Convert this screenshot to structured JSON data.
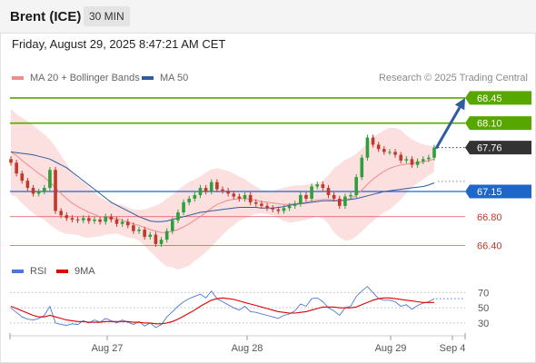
{
  "header": {
    "symbol": "Brent (ICE)",
    "timeframe": "30 MIN"
  },
  "datetime": "Friday, August 29, 2025 8:47:21 AM CET",
  "legend": [
    {
      "label": "MA 20 + Bollinger Bands",
      "color": "#f28b8b"
    },
    {
      "label": "MA 50",
      "color": "#2e5c9e"
    }
  ],
  "credit": "Research © 2025 Trading Central",
  "colors": {
    "up": "#2e9e3e",
    "down": "#c0392b",
    "green_level": "#58a700",
    "blue_level": "#1f66c9",
    "red_level": "#d9534f",
    "band_fill": "#fbd9d9",
    "current": "#333333",
    "arrow": "#2e5c9e"
  },
  "chart_data": [
    {
      "type": "candlestick",
      "title": "",
      "x_ticks": [
        "Aug 27",
        "Aug 28",
        "Aug 29",
        "Sep 4"
      ],
      "ylim": [
        66.28,
        68.55
      ],
      "current_price": 67.76,
      "resistance_levels": [
        "68.45",
        "68.10"
      ],
      "pivot": "67.15",
      "support_levels": [
        "66.80",
        "66.40"
      ],
      "projection": {
        "from": 67.76,
        "to": 68.45
      },
      "closes": [
        67.55,
        67.4,
        67.3,
        67.2,
        67.12,
        67.15,
        67.2,
        67.45,
        66.88,
        66.82,
        66.78,
        66.76,
        66.75,
        66.78,
        66.74,
        66.76,
        66.73,
        66.8,
        66.76,
        66.7,
        66.73,
        66.68,
        66.6,
        66.62,
        66.52,
        66.55,
        66.42,
        66.48,
        66.6,
        66.75,
        66.86,
        67.0,
        67.05,
        67.1,
        67.2,
        67.15,
        67.28,
        67.18,
        67.16,
        67.12,
        67.08,
        67.05,
        67.1,
        67.0,
        66.98,
        66.95,
        66.92,
        66.9,
        66.88,
        66.92,
        66.95,
        66.98,
        67.1,
        67.05,
        67.22,
        67.25,
        67.2,
        67.1,
        67.05,
        66.95,
        67.08,
        67.1,
        67.35,
        67.62,
        67.9,
        67.8,
        67.74,
        67.7,
        67.7,
        67.66,
        67.58,
        67.6,
        67.52,
        67.57,
        67.6,
        67.62,
        67.76
      ],
      "ma20": [
        67.7,
        67.65,
        67.58,
        67.52,
        67.46,
        67.4,
        67.35,
        67.28,
        67.2,
        67.12,
        67.05,
        66.99,
        66.94,
        66.9,
        66.86,
        66.83,
        66.8,
        66.79,
        66.78,
        66.77,
        66.75,
        66.72,
        66.7,
        66.68,
        66.65,
        66.62,
        66.6,
        66.58,
        66.58,
        66.6,
        66.62,
        66.66,
        66.7,
        66.75,
        66.8,
        66.86,
        66.92,
        66.97,
        67.0,
        67.03,
        67.04,
        67.05,
        67.05,
        67.04,
        67.03,
        67.01,
        67.0,
        66.99,
        66.98,
        66.97,
        66.97,
        66.98,
        66.99,
        67.0,
        67.02,
        67.03,
        67.04,
        67.04,
        67.03,
        67.02,
        67.03,
        67.05,
        67.1,
        67.17,
        67.25,
        67.32,
        67.38,
        67.43,
        67.47,
        67.5,
        67.52,
        67.53,
        67.54,
        67.55,
        67.56,
        67.58,
        67.6
      ],
      "ma50": [
        67.7,
        67.69,
        67.68,
        67.67,
        67.66,
        67.64,
        67.62,
        67.6,
        67.56,
        67.52,
        67.48,
        67.42,
        67.36,
        67.3,
        67.24,
        67.18,
        67.12,
        67.06,
        67.0,
        66.96,
        66.92,
        66.88,
        66.84,
        66.8,
        66.77,
        66.74,
        66.73,
        66.73,
        66.74,
        66.76,
        66.78,
        66.8,
        66.82,
        66.84,
        66.86,
        66.87,
        66.88,
        66.89,
        66.9,
        66.91,
        66.92,
        66.93,
        66.93,
        66.93,
        66.93,
        66.92,
        66.92,
        66.92,
        66.93,
        66.94,
        66.96,
        66.97,
        66.98,
        66.99,
        67.0,
        67.01,
        67.02,
        67.02,
        67.02,
        67.02,
        67.03,
        67.04,
        67.05,
        67.07,
        67.09,
        67.11,
        67.13,
        67.15,
        67.16,
        67.17,
        67.18,
        67.19,
        67.2,
        67.21,
        67.22,
        67.24,
        67.27
      ]
    },
    {
      "type": "line",
      "title": "",
      "series": [
        {
          "name": "RSI",
          "color": "#4a78d8",
          "values": [
            50,
            44,
            38,
            35,
            34,
            36,
            40,
            52,
            30,
            28,
            27,
            29,
            28,
            33,
            30,
            34,
            31,
            36,
            33,
            30,
            34,
            31,
            28,
            32,
            26,
            30,
            24,
            28,
            38,
            45,
            52,
            58,
            62,
            65,
            68,
            63,
            72,
            62,
            58,
            54,
            50,
            47,
            52,
            45,
            44,
            42,
            40,
            38,
            36,
            40,
            42,
            46,
            55,
            52,
            62,
            63,
            58,
            50,
            46,
            40,
            50,
            52,
            65,
            72,
            78,
            70,
            62,
            60,
            60,
            58,
            52,
            54,
            48,
            53,
            56,
            58,
            62
          ]
        },
        {
          "name": "9MA",
          "color": "#e00000",
          "values": [
            52,
            49,
            46,
            43,
            40,
            38,
            38,
            40,
            38,
            36,
            34,
            33,
            32,
            32,
            31,
            31,
            31,
            32,
            32,
            32,
            32,
            32,
            31,
            31,
            30,
            30,
            29,
            29,
            30,
            32,
            35,
            39,
            43,
            47,
            52,
            56,
            60,
            62,
            63,
            62,
            61,
            59,
            57,
            55,
            53,
            51,
            49,
            47,
            45,
            44,
            43,
            43,
            44,
            45,
            47,
            49,
            51,
            51,
            51,
            50,
            50,
            50,
            51,
            54,
            57,
            60,
            62,
            63,
            63,
            62,
            61,
            60,
            59,
            58,
            57,
            57,
            57
          ]
        }
      ],
      "y_ticks": [
        "70",
        "50",
        "30"
      ],
      "ylim": [
        18,
        80
      ]
    }
  ]
}
